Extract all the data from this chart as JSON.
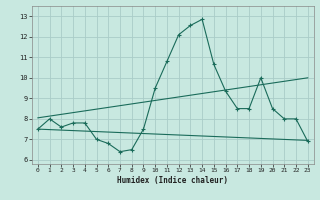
{
  "xlabel": "Humidex (Indice chaleur)",
  "bg_color": "#c8e8e0",
  "grid_color": "#aaccc8",
  "line_color": "#1a6b5a",
  "xlim": [
    -0.5,
    23.5
  ],
  "ylim": [
    5.8,
    13.5
  ],
  "yticks": [
    6,
    7,
    8,
    9,
    10,
    11,
    12,
    13
  ],
  "xticks": [
    0,
    1,
    2,
    3,
    4,
    5,
    6,
    7,
    8,
    9,
    10,
    11,
    12,
    13,
    14,
    15,
    16,
    17,
    18,
    19,
    20,
    21,
    22,
    23
  ],
  "line1_x": [
    0,
    1,
    2,
    3,
    4,
    5,
    6,
    7,
    8,
    9,
    10,
    11,
    12,
    13,
    14,
    15,
    16,
    17,
    18,
    19,
    20,
    21,
    22,
    23
  ],
  "line1_y": [
    7.5,
    8.0,
    7.6,
    7.8,
    7.8,
    7.0,
    6.8,
    6.4,
    6.5,
    7.5,
    9.5,
    10.8,
    12.1,
    12.55,
    12.85,
    10.65,
    9.35,
    8.5,
    8.5,
    10.0,
    8.5,
    8.0,
    8.0,
    6.9
  ],
  "line2_x": [
    0,
    23
  ],
  "line2_y": [
    7.5,
    6.95
  ],
  "line3_x": [
    0,
    23
  ],
  "line3_y": [
    8.05,
    10.0
  ]
}
